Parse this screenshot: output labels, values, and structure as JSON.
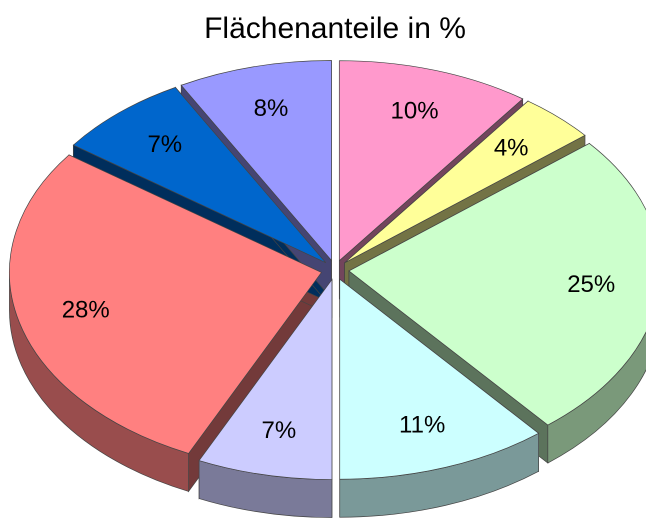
{
  "chart_data": {
    "type": "pie",
    "title": "Flächenanteile in %",
    "categories": [
      null,
      null,
      null,
      null,
      null,
      null,
      null,
      null
    ],
    "values": [
      10,
      4,
      25,
      11,
      7,
      28,
      7,
      8
    ],
    "value_labels": [
      "10%",
      "4%",
      "25%",
      "11%",
      "7%",
      "28%",
      "7%",
      "8%"
    ],
    "colors": [
      "#ff99cc",
      "#ffff99",
      "#ccffcc",
      "#ccffff",
      "#ccccff",
      "#ff8080",
      "#0066cc",
      "#9999ff"
    ]
  }
}
